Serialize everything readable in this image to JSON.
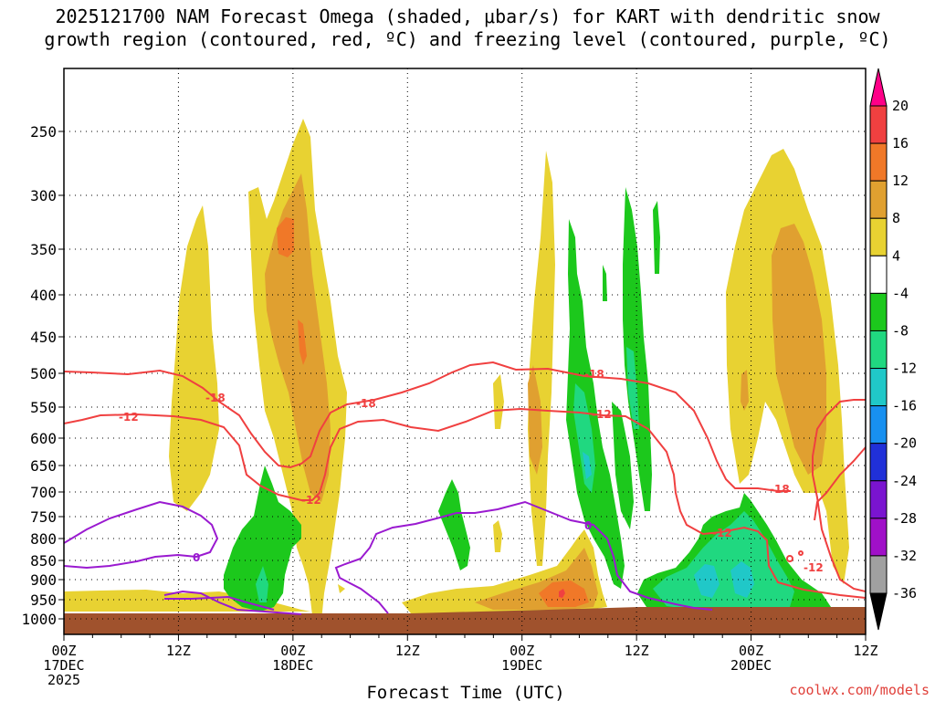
{
  "title": {
    "line1": "2025121700 NAM Forecast Omega (shaded, μbar/s) for KART with dendritic snow",
    "line2": "growth region (contoured, red, ºC) and freezing level (contoured, purple, ºC)"
  },
  "credit": "coolwx.com/models",
  "chart_data": {
    "type": "time-height cross section",
    "title": "2025121700 NAM Forecast Omega (shaded, μbar/s) for KART with dendritic snow growth region (contoured, red, ºC) and freezing level (contoured, purple, ºC)",
    "xlabel": "Forecast Time (UTC)",
    "ylabel": "Pressure (hPa)",
    "x_ticks": [
      {
        "hour": 0,
        "line1": "00Z",
        "line2": "17DEC",
        "line3": "2025"
      },
      {
        "hour": 12,
        "line1": "12Z",
        "line2": "",
        "line3": ""
      },
      {
        "hour": 24,
        "line1": "00Z",
        "line2": "18DEC",
        "line3": ""
      },
      {
        "hour": 36,
        "line1": "12Z",
        "line2": "",
        "line3": ""
      },
      {
        "hour": 48,
        "line1": "00Z",
        "line2": "19DEC",
        "line3": ""
      },
      {
        "hour": 60,
        "line1": "12Z",
        "line2": "",
        "line3": ""
      },
      {
        "hour": 72,
        "line1": "00Z",
        "line2": "20DEC",
        "line3": ""
      },
      {
        "hour": 84,
        "line1": "12Z",
        "line2": "",
        "line3": ""
      }
    ],
    "x_range_hours": [
      0,
      84
    ],
    "y_ticks": [
      "250",
      "300",
      "350",
      "400",
      "450",
      "500",
      "550",
      "600",
      "650",
      "700",
      "750",
      "800",
      "850",
      "900",
      "950",
      "1000"
    ],
    "y_range_hpa": [
      200,
      1000
    ],
    "colorbar": {
      "labels": [
        "20",
        "16",
        "12",
        "8",
        "4",
        "-4",
        "-8",
        "-12",
        "-16",
        "-20",
        "-24",
        "-28",
        "-32",
        "-36"
      ],
      "colors": [
        "#ff0088",
        "#f04040",
        "#f07828",
        "#e0a030",
        "#e8d232",
        "#ffffff",
        "#1cc81c",
        "#20d880",
        "#20c8c8",
        "#1890f0",
        "#2030d8",
        "#7a14d0",
        "#a010c8",
        "#a0a0a0",
        "#000000"
      ]
    },
    "omega_positive": [
      {
        "center_hour": 13,
        "levels_hpa": [
          330,
          930
        ],
        "max": 8
      },
      {
        "center_hour": 24.5,
        "levels_hpa": [
          240,
          810
        ],
        "max": 14
      },
      {
        "center_hour": 50.5,
        "levels_hpa": [
          270,
          720
        ],
        "max": 8
      },
      {
        "center_hour": 52,
        "levels_hpa": [
          870,
          960
        ],
        "max": 20
      },
      {
        "center_hour": 79,
        "levels_hpa": [
          270,
          780
        ],
        "max": 12
      }
    ],
    "omega_negative": [
      {
        "center_hour": 21,
        "levels_hpa": [
          660,
          960
        ],
        "min": -16
      },
      {
        "center_hour": 40,
        "levels_hpa": [
          700,
          830
        ],
        "min": -8
      },
      {
        "center_hour": 55,
        "levels_hpa": [
          370,
          900
        ],
        "min": -16
      },
      {
        "center_hour": 60,
        "levels_hpa": [
          300,
          850
        ],
        "min": -16
      },
      {
        "center_hour": 73,
        "levels_hpa": [
          710,
          960
        ],
        "min": -16
      }
    ],
    "contour_labels": {
      "red": [
        "-12",
        "-18",
        "-18",
        "-12",
        "-18",
        "-12",
        "-18",
        "-12",
        "-12"
      ],
      "purple": [
        "0",
        "0"
      ]
    }
  }
}
